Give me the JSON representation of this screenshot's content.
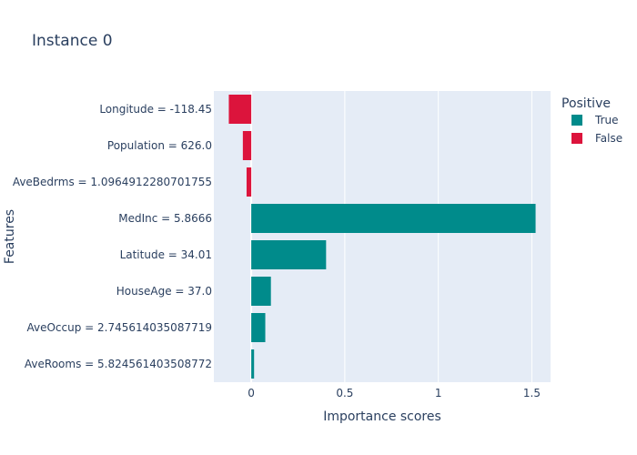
{
  "chart_data": {
    "type": "bar",
    "orientation": "horizontal",
    "title": "Instance 0",
    "xlabel": "Importance scores",
    "ylabel": "Features",
    "xlim": [
      -0.2,
      1.6
    ],
    "xticks": [
      0,
      0.5,
      1,
      1.5
    ],
    "xtick_labels": [
      "0",
      "0.5",
      "1",
      "1.5"
    ],
    "grid": true,
    "categories": [
      "Longitude = -118.45",
      "Population = 626.0",
      "AveBedrms = 1.0964912280701755",
      "MedInc = 5.8666",
      "Latitude = 34.01",
      "HouseAge = 37.0",
      "AveOccup = 2.745614035087719",
      "AveRooms = 5.824561403508772"
    ],
    "values": [
      -0.12,
      -0.045,
      -0.025,
      1.52,
      0.4,
      0.105,
      0.075,
      0.015
    ],
    "positive": [
      false,
      false,
      false,
      true,
      true,
      true,
      true,
      true
    ],
    "legend": {
      "title": "Positive",
      "placement": "top-right",
      "entries": [
        {
          "label": "True",
          "color": "#008b8b"
        },
        {
          "label": "False",
          "color": "#dc143c"
        }
      ]
    },
    "colors": {
      "true": "#008b8b",
      "false": "#dc143c",
      "plot_bg": "#e5ecf6",
      "grid": "#ffffff"
    }
  }
}
